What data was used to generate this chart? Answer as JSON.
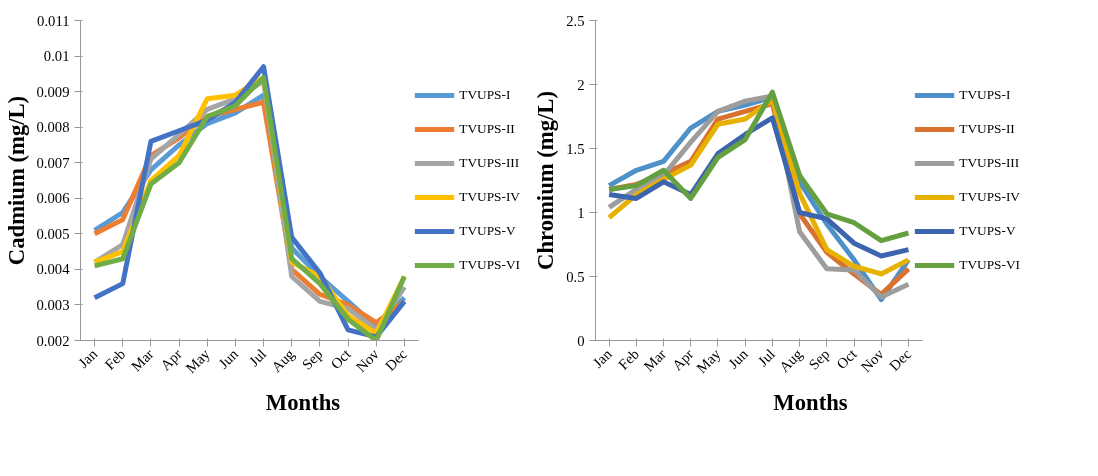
{
  "chart_data": [
    {
      "type": "line",
      "xlabel": "Months",
      "ylabel": "Cadmium (mg/L)",
      "categories": [
        "Jan",
        "Feb",
        "Mar",
        "Apr",
        "May",
        "Jun",
        "Jul",
        "Aug",
        "Sep",
        "Oct",
        "Nov",
        "Dec"
      ],
      "ylim": [
        0.002,
        0.011
      ],
      "yticks": [
        0.002,
        0.003,
        0.004,
        0.005,
        0.006,
        0.007,
        0.008,
        0.009,
        0.01,
        0.011
      ],
      "grid": false,
      "legend": "right",
      "series": [
        {
          "name": "TVUPS-I",
          "color": "#5b9bd5",
          "values": [
            0.0051,
            0.0056,
            0.0068,
            0.0075,
            0.0081,
            0.0084,
            0.0089,
            0.0046,
            0.0038,
            0.0031,
            0.0024,
            0.0032
          ]
        },
        {
          "name": "TVUPS-II",
          "color": "#ed7d31",
          "values": [
            0.005,
            0.0054,
            0.0072,
            0.0077,
            0.0083,
            0.0085,
            0.0087,
            0.004,
            0.0033,
            0.003,
            0.0025,
            0.0031
          ]
        },
        {
          "name": "TVUPS-III",
          "color": "#a5a5a5",
          "values": [
            0.0042,
            0.0047,
            0.0071,
            0.0078,
            0.0085,
            0.0088,
            0.0093,
            0.0038,
            0.0031,
            0.0029,
            0.0023,
            0.0035
          ]
        },
        {
          "name": "TVUPS-IV",
          "color": "#ffc000",
          "values": [
            0.0042,
            0.0045,
            0.0065,
            0.0072,
            0.0088,
            0.0089,
            0.0094,
            0.0042,
            0.0038,
            0.0027,
            0.0022,
            0.0038
          ]
        },
        {
          "name": "TVUPS-V",
          "color": "#4472c4",
          "values": [
            0.0032,
            0.0036,
            0.0076,
            0.0079,
            0.0082,
            0.0087,
            0.0097,
            0.0049,
            0.0039,
            0.0023,
            0.0021,
            0.0031
          ]
        },
        {
          "name": "TVUPS-VI",
          "color": "#70ad47",
          "values": [
            0.0041,
            0.0043,
            0.0064,
            0.007,
            0.0083,
            0.0086,
            0.0094,
            0.0043,
            0.0036,
            0.0026,
            0.002,
            0.0038
          ]
        }
      ]
    },
    {
      "type": "line",
      "xlabel": "Months",
      "ylabel": "Chromium (mg/L)",
      "categories": [
        "Jan",
        "Feb",
        "Mar",
        "Apr",
        "May",
        "Jun",
        "Jul",
        "Aug",
        "Sep",
        "Oct",
        "Nov",
        "Dec"
      ],
      "ylim": [
        0,
        2.5
      ],
      "yticks": [
        0,
        0.5,
        1,
        1.5,
        2,
        2.5
      ],
      "grid": false,
      "legend": "right",
      "series": [
        {
          "name": "TVUPS-I",
          "color": "#4e91c9",
          "values": [
            1.21,
            1.33,
            1.4,
            1.66,
            1.79,
            1.84,
            1.9,
            1.24,
            0.91,
            0.63,
            0.32,
            0.63
          ]
        },
        {
          "name": "TVUPS-II",
          "color": "#d9712f",
          "values": [
            1.18,
            1.22,
            1.3,
            1.4,
            1.73,
            1.79,
            1.85,
            0.99,
            0.69,
            0.52,
            0.36,
            0.56
          ]
        },
        {
          "name": "TVUPS-III",
          "color": "#9d9d9d",
          "values": [
            1.04,
            1.18,
            1.29,
            1.55,
            1.79,
            1.87,
            1.91,
            0.85,
            0.56,
            0.55,
            0.34,
            0.44
          ]
        },
        {
          "name": "TVUPS-IV",
          "color": "#e6b100",
          "values": [
            0.96,
            1.14,
            1.26,
            1.37,
            1.69,
            1.73,
            1.88,
            1.15,
            0.71,
            0.58,
            0.52,
            0.63
          ]
        },
        {
          "name": "TVUPS-V",
          "color": "#3d64ae",
          "values": [
            1.14,
            1.11,
            1.24,
            1.14,
            1.46,
            1.61,
            1.74,
            1.0,
            0.95,
            0.76,
            0.66,
            0.71
          ]
        },
        {
          "name": "TVUPS-VI",
          "color": "#64a03f",
          "values": [
            1.18,
            1.21,
            1.33,
            1.11,
            1.43,
            1.57,
            1.94,
            1.29,
            0.99,
            0.92,
            0.78,
            0.84
          ]
        }
      ]
    }
  ]
}
